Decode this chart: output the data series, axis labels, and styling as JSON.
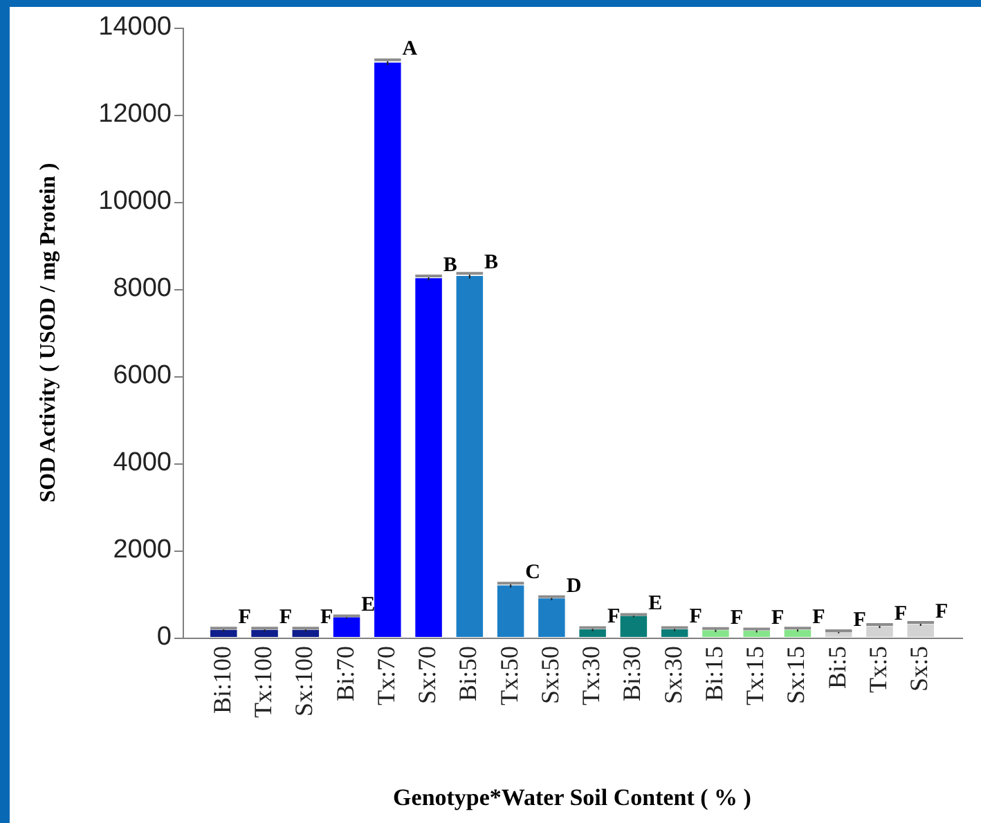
{
  "chart_data": {
    "type": "bar",
    "xlabel": "Genotype*Water Soil Content ( % )",
    "ylabel": "SOD Activity ( USOD / mg Protein )",
    "categories": [
      "Bi:100",
      "Tx:100",
      "Sx:100",
      "Bi:70",
      "Tx:70",
      "Sx:70",
      "Bi:50",
      "Tx:50",
      "Sx:50",
      "Tx:30",
      "Bi:30",
      "Sx:30",
      "Bi:15",
      "Tx:15",
      "Sx:15",
      "Bi:5",
      "Tx:5",
      "Sx:5"
    ],
    "values": [
      180,
      180,
      180,
      470,
      13200,
      8250,
      8300,
      1200,
      900,
      190,
      500,
      190,
      170,
      160,
      180,
      130,
      260,
      310
    ],
    "errors": [
      40,
      40,
      40,
      30,
      60,
      50,
      60,
      50,
      40,
      40,
      30,
      40,
      40,
      40,
      40,
      30,
      40,
      40
    ],
    "colors": [
      "#0f1e8c",
      "#0f1e8c",
      "#0f1e8c",
      "#0000ff",
      "#0000ff",
      "#0000ff",
      "#1c7fc6",
      "#1c7fc6",
      "#1c7fc6",
      "#0b7d78",
      "#0b7d78",
      "#0b7d78",
      "#86e58a",
      "#86e58a",
      "#86e58a",
      "#d3d3d3",
      "#d3d3d3",
      "#d3d3d3"
    ],
    "ylim": [
      0,
      14000
    ],
    "yticks": [
      0,
      2000,
      4000,
      6000,
      8000,
      10000,
      12000,
      14000
    ],
    "grid": false,
    "legend": false,
    "annotations": [
      {
        "text": "F",
        "x": "Bi:100",
        "y": 220
      },
      {
        "text": "F",
        "x": "Tx:100",
        "y": 220
      },
      {
        "text": "F",
        "x": "Sx:100",
        "y": 220
      },
      {
        "text": "E",
        "x": "Bi:70",
        "y": 500
      },
      {
        "text": "A",
        "x": "Tx:70",
        "y": 13260
      },
      {
        "text": "B",
        "x": "Sx:70",
        "y": 8300
      },
      {
        "text": "B",
        "x": "Bi:50",
        "y": 8360
      },
      {
        "text": "C",
        "x": "Tx:50",
        "y": 1250
      },
      {
        "text": "D",
        "x": "Sx:50",
        "y": 940
      },
      {
        "text": "F",
        "x": "Tx:30",
        "y": 230
      },
      {
        "text": "E",
        "x": "Bi:30",
        "y": 530
      },
      {
        "text": "F",
        "x": "Sx:30",
        "y": 230
      },
      {
        "text": "F",
        "x": "Bi:15",
        "y": 210
      },
      {
        "text": "F",
        "x": "Tx:15",
        "y": 200
      },
      {
        "text": "F",
        "x": "Sx:15",
        "y": 220
      },
      {
        "text": "F",
        "x": "Bi:5",
        "y": 160
      },
      {
        "text": "F",
        "x": "Tx:5",
        "y": 300
      },
      {
        "text": "F",
        "x": "Sx:5",
        "y": 350
      }
    ]
  }
}
